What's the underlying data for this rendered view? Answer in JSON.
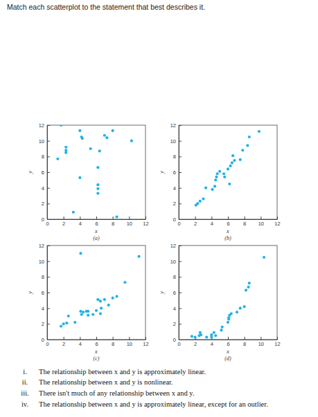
{
  "title": "Match each scatterplot to the statement that best describes it.",
  "chart_data": [
    {
      "type": "scatter",
      "subtitle": "(a)",
      "x_label": "x",
      "y_label": "y",
      "color": "#1fb3e6",
      "marker": "circle",
      "x": [
        1.7,
        1.3,
        2.3,
        2.3,
        2.3,
        3.2,
        4.0,
        4.2,
        4.3,
        4.0,
        5.3,
        6.2,
        6.4,
        6.2,
        6.2,
        6.2,
        7.0,
        7.3,
        8.0,
        8.5,
        10.3
      ],
      "values": [
        12.0,
        7.7,
        9.2,
        8.8,
        8.5,
        0.9,
        11.3,
        10.5,
        10.3,
        5.3,
        9.0,
        6.6,
        8.7,
        4.4,
        3.9,
        3.3,
        10.7,
        10.4,
        11.3,
        0.3,
        10.0
      ],
      "xlim": [
        0,
        12
      ],
      "ylim": [
        0,
        12
      ],
      "xticks": [
        0,
        2,
        4,
        6,
        8,
        10,
        12
      ],
      "yticks": [
        0,
        2,
        4,
        6,
        8,
        10,
        12
      ]
    },
    {
      "type": "scatter",
      "subtitle": "(b)",
      "x_label": "x",
      "y_label": "y",
      "color": "#1fb3e6",
      "marker": "circle",
      "x": [
        2.1,
        2.3,
        2.6,
        3.0,
        3.3,
        4.1,
        4.4,
        4.5,
        4.6,
        4.7,
        5.0,
        5.5,
        5.6,
        6.2,
        6.3,
        6.5,
        6.6,
        6.8,
        7.5,
        7.8,
        8.4,
        8.6,
        9.8,
        6.0
      ],
      "values": [
        1.8,
        2.0,
        2.3,
        2.6,
        4.0,
        3.8,
        4.2,
        5.0,
        5.4,
        5.8,
        6.1,
        5.8,
        5.4,
        4.5,
        6.8,
        7.2,
        8.1,
        7.5,
        7.6,
        8.8,
        9.4,
        10.5,
        11.2,
        6.4
      ],
      "xlim": [
        0,
        12
      ],
      "ylim": [
        0,
        12
      ],
      "xticks": [
        0,
        2,
        4,
        6,
        8,
        10,
        12
      ],
      "yticks": [
        0,
        2,
        4,
        6,
        8,
        10,
        12
      ]
    },
    {
      "type": "scatter",
      "subtitle": "(c)",
      "x_label": "x",
      "y_label": "y",
      "color": "#1fb3e6",
      "marker": "circle",
      "x": [
        1.7,
        2.0,
        2.4,
        2.6,
        3.4,
        4.2,
        4.1,
        4.4,
        4.8,
        5.0,
        5.0,
        5.6,
        6.0,
        6.5,
        6.2,
        6.5,
        6.6,
        7.0,
        7.5,
        8.0,
        8.5,
        9.5,
        11.2,
        4.1
      ],
      "values": [
        1.7,
        2.0,
        2.1,
        3.0,
        2.2,
        3.2,
        3.6,
        3.5,
        3.6,
        3.1,
        3.6,
        3.2,
        3.7,
        3.3,
        5.1,
        4.9,
        4.0,
        5.1,
        4.4,
        5.3,
        5.5,
        7.3,
        10.6,
        11.0
      ],
      "xlim": [
        0,
        12
      ],
      "ylim": [
        0,
        12
      ],
      "xticks": [
        0,
        2,
        4,
        6,
        8,
        10,
        12
      ],
      "yticks": [
        0,
        2,
        4,
        6,
        8,
        10,
        12
      ]
    },
    {
      "type": "scatter",
      "subtitle": "(d)",
      "x_label": "x",
      "y_label": "y",
      "color": "#1fb3e6",
      "marker": "circle",
      "x": [
        1.6,
        2.0,
        2.5,
        2.6,
        2.7,
        3.4,
        4.0,
        4.3,
        4.5,
        4.0,
        5.2,
        5.3,
        6.0,
        6.1,
        6.2,
        6.4,
        7.1,
        7.5,
        8.0,
        8.2,
        8.5,
        8.6,
        10.4,
        6.1
      ],
      "values": [
        0.4,
        0.3,
        0.5,
        0.9,
        0.6,
        0.3,
        0.6,
        0.9,
        0.5,
        0.3,
        1.2,
        1.6,
        2.2,
        2.6,
        3.1,
        3.3,
        3.5,
        4.0,
        4.2,
        6.3,
        6.7,
        7.2,
        10.5,
        2.8
      ],
      "xlim": [
        0,
        12
      ],
      "ylim": [
        0,
        12
      ],
      "xticks": [
        0,
        2,
        4,
        6,
        8,
        10,
        12
      ],
      "yticks": [
        0,
        2,
        4,
        6,
        8,
        10,
        12
      ]
    }
  ],
  "statements": [
    {
      "number": "i.",
      "text": "The relationship between x and y is approximately linear."
    },
    {
      "number": "ii.",
      "text": "The relationship between x and y is nonlinear."
    },
    {
      "number": "iii.",
      "text": "There isn't much of any relationship between x and y."
    },
    {
      "number": "iv.",
      "text": "The relationship between x and y is approximately linear, except for an outlier."
    }
  ]
}
